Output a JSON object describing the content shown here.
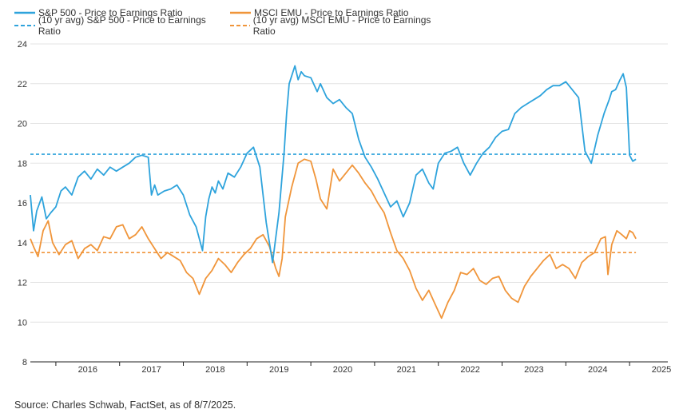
{
  "legend": {
    "sp500": "S&P 500 - Price to Earnings Ratio",
    "emu": "MSCI EMU - Price to Earnings Ratio",
    "sp500_avg": "(10 yr avg) S&P 500 - Price to Earnings Ratio",
    "emu_avg": "(10 yr avg) MSCI EMU - Price to Earnings Ratio"
  },
  "source": "Source: Charles Schwab, FactSet, as of 8/7/2025.",
  "colors": {
    "sp500": "#2ea3dc",
    "emu": "#f0953a",
    "grid": "#e3e3e3",
    "axis": "#222222"
  },
  "chart_data": {
    "type": "line",
    "title": "",
    "xlabel": "",
    "ylabel": "",
    "ylim": [
      8,
      24
    ],
    "xlim": [
      2015.6,
      2025.6
    ],
    "grid": true,
    "legend_position": "top-left",
    "yticks": [
      8,
      10,
      12,
      14,
      16,
      18,
      20,
      22,
      24
    ],
    "xtick_labels": [
      "2016",
      "2017",
      "2018",
      "2019",
      "2020",
      "2021",
      "2022",
      "2023",
      "2024",
      "2025"
    ],
    "xtick_positions": [
      2016.0,
      2017.0,
      2018.0,
      2019.0,
      2020.0,
      2021.0,
      2022.0,
      2023.0,
      2024.0,
      2025.0
    ],
    "series": [
      {
        "name": "S&P 500 - Price to Earnings Ratio",
        "color": "#2ea3dc",
        "x": [
          2015.6,
          2015.65,
          2015.7,
          2015.78,
          2015.85,
          2015.92,
          2016.0,
          2016.08,
          2016.15,
          2016.25,
          2016.35,
          2016.45,
          2016.55,
          2016.65,
          2016.75,
          2016.85,
          2016.95,
          2017.05,
          2017.15,
          2017.25,
          2017.35,
          2017.45,
          2017.5,
          2017.55,
          2017.6,
          2017.7,
          2017.8,
          2017.9,
          2018.0,
          2018.1,
          2018.2,
          2018.3,
          2018.35,
          2018.4,
          2018.45,
          2018.5,
          2018.55,
          2018.62,
          2018.7,
          2018.8,
          2018.9,
          2019.0,
          2019.1,
          2019.2,
          2019.3,
          2019.4,
          2019.5,
          2019.58,
          2019.62,
          2019.66,
          2019.7,
          2019.75,
          2019.8,
          2019.85,
          2019.9,
          2020.0,
          2020.1,
          2020.15,
          2020.25,
          2020.35,
          2020.45,
          2020.55,
          2020.65,
          2020.75,
          2020.85,
          2020.95,
          2021.05,
          2021.15,
          2021.25,
          2021.35,
          2021.45,
          2021.55,
          2021.65,
          2021.75,
          2021.85,
          2021.92,
          2022.0,
          2022.1,
          2022.2,
          2022.3,
          2022.4,
          2022.5,
          2022.6,
          2022.7,
          2022.8,
          2022.9,
          2023.0,
          2023.1,
          2023.2,
          2023.3,
          2023.4,
          2023.5,
          2023.6,
          2023.7,
          2023.8,
          2023.9,
          2024.0,
          2024.1,
          2024.2,
          2024.3,
          2024.4,
          2024.5,
          2024.6,
          2024.68,
          2024.72,
          2024.78,
          2024.85,
          2024.9,
          2024.95,
          2025.0,
          2025.05,
          2025.1
        ],
        "values": [
          16.4,
          14.6,
          15.6,
          16.3,
          15.2,
          15.5,
          15.8,
          16.6,
          16.8,
          16.4,
          17.3,
          17.6,
          17.2,
          17.7,
          17.4,
          17.8,
          17.6,
          17.8,
          18.0,
          18.3,
          18.4,
          18.3,
          16.4,
          16.9,
          16.4,
          16.6,
          16.7,
          16.9,
          16.4,
          15.4,
          14.8,
          13.6,
          15.3,
          16.2,
          16.8,
          16.5,
          17.1,
          16.7,
          17.5,
          17.3,
          17.8,
          18.5,
          18.8,
          17.8,
          15.0,
          13.0,
          15.5,
          18.5,
          20.5,
          22.0,
          22.4,
          22.9,
          22.2,
          22.6,
          22.4,
          22.3,
          21.6,
          22.0,
          21.3,
          21.0,
          21.2,
          20.8,
          20.5,
          19.2,
          18.3,
          17.8,
          17.2,
          16.5,
          15.8,
          16.1,
          15.3,
          16.0,
          17.4,
          17.7,
          17.0,
          16.7,
          18.0,
          18.5,
          18.6,
          18.8,
          18.0,
          17.4,
          18.0,
          18.5,
          18.8,
          19.3,
          19.6,
          19.7,
          20.5,
          20.8,
          21.0,
          21.2,
          21.4,
          21.7,
          21.9,
          21.9,
          22.1,
          21.7,
          21.3,
          18.6,
          18.0,
          19.4,
          20.5,
          21.2,
          21.6,
          21.7,
          22.2,
          22.5,
          21.8,
          18.4,
          18.1,
          18.2
        ],
        "note_avg": 18.4
      },
      {
        "name": "MSCI EMU - Price to Earnings Ratio",
        "color": "#f0953a",
        "x": [
          2015.6,
          2015.65,
          2015.72,
          2015.8,
          2015.88,
          2015.95,
          2016.05,
          2016.15,
          2016.25,
          2016.35,
          2016.45,
          2016.55,
          2016.65,
          2016.75,
          2016.85,
          2016.95,
          2017.05,
          2017.15,
          2017.25,
          2017.35,
          2017.45,
          2017.55,
          2017.65,
          2017.75,
          2017.85,
          2017.95,
          2018.05,
          2018.15,
          2018.25,
          2018.35,
          2018.45,
          2018.55,
          2018.65,
          2018.75,
          2018.85,
          2018.95,
          2019.05,
          2019.15,
          2019.25,
          2019.35,
          2019.45,
          2019.5,
          2019.55,
          2019.6,
          2019.7,
          2019.8,
          2019.9,
          2020.0,
          2020.08,
          2020.15,
          2020.25,
          2020.35,
          2020.45,
          2020.55,
          2020.65,
          2020.75,
          2020.85,
          2020.95,
          2021.05,
          2021.15,
          2021.25,
          2021.35,
          2021.45,
          2021.55,
          2021.65,
          2021.75,
          2021.85,
          2021.95,
          2022.05,
          2022.15,
          2022.25,
          2022.35,
          2022.45,
          2022.55,
          2022.65,
          2022.75,
          2022.85,
          2022.95,
          2023.05,
          2023.15,
          2023.25,
          2023.35,
          2023.45,
          2023.55,
          2023.65,
          2023.75,
          2023.85,
          2023.95,
          2024.05,
          2024.15,
          2024.25,
          2024.35,
          2024.45,
          2024.55,
          2024.62,
          2024.66,
          2024.72,
          2024.8,
          2024.88,
          2024.95,
          2025.0,
          2025.05,
          2025.1
        ],
        "values": [
          14.2,
          13.8,
          13.3,
          14.6,
          15.1,
          14.0,
          13.4,
          13.9,
          14.1,
          13.2,
          13.7,
          13.9,
          13.6,
          14.3,
          14.2,
          14.8,
          14.9,
          14.2,
          14.4,
          14.8,
          14.2,
          13.7,
          13.2,
          13.5,
          13.3,
          13.1,
          12.5,
          12.2,
          11.4,
          12.2,
          12.6,
          13.2,
          12.9,
          12.5,
          13.0,
          13.4,
          13.7,
          14.2,
          14.4,
          13.8,
          12.7,
          12.3,
          13.2,
          15.3,
          16.8,
          18.0,
          18.2,
          18.1,
          17.2,
          16.2,
          15.7,
          17.7,
          17.1,
          17.5,
          17.9,
          17.5,
          17.0,
          16.6,
          16.0,
          15.5,
          14.5,
          13.6,
          13.2,
          12.6,
          11.7,
          11.1,
          11.6,
          10.9,
          10.2,
          11.0,
          11.6,
          12.5,
          12.4,
          12.7,
          12.1,
          11.9,
          12.2,
          12.3,
          11.6,
          11.2,
          11.0,
          11.8,
          12.3,
          12.7,
          13.1,
          13.4,
          12.7,
          12.9,
          12.7,
          12.2,
          13.0,
          13.3,
          13.5,
          14.2,
          14.3,
          12.4,
          13.9,
          14.6,
          14.4,
          14.2,
          14.6,
          14.5,
          14.2
        ],
        "note_avg": 13.5
      },
      {
        "name": "(10 yr avg) S&P 500 - Price to Earnings Ratio",
        "color": "#2ea3dc",
        "dashed": true,
        "x": [
          2015.6,
          2025.1
        ],
        "values": [
          18.45,
          18.45
        ]
      },
      {
        "name": "(10 yr avg) MSCI EMU - Price to Earnings Ratio",
        "color": "#f0953a",
        "dashed": true,
        "x": [
          2015.6,
          2025.1
        ],
        "values": [
          13.5,
          13.5
        ]
      }
    ]
  }
}
